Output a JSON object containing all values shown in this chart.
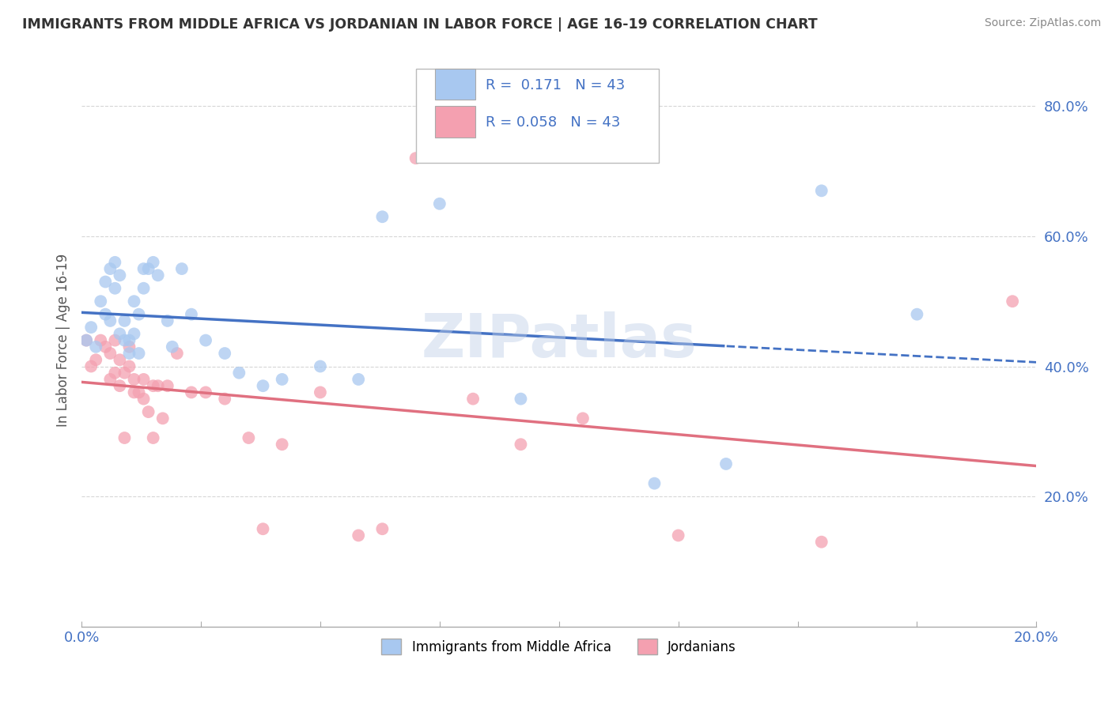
{
  "title": "IMMIGRANTS FROM MIDDLE AFRICA VS JORDANIAN IN LABOR FORCE | AGE 16-19 CORRELATION CHART",
  "source": "Source: ZipAtlas.com",
  "ylabel": "In Labor Force | Age 16-19",
  "legend_label1": "Immigrants from Middle Africa",
  "legend_label2": "Jordanians",
  "R1": 0.171,
  "N1": 43,
  "R2": 0.058,
  "N2": 43,
  "xlim": [
    0.0,
    0.2
  ],
  "ylim": [
    0.0,
    0.88
  ],
  "xticks": [
    0.0,
    0.025,
    0.05,
    0.075,
    0.1,
    0.125,
    0.15,
    0.175,
    0.2
  ],
  "xticklabels": [
    "0.0%",
    "",
    "",
    "",
    "",
    "",
    "",
    "",
    "20.0%"
  ],
  "yticks": [
    0.2,
    0.4,
    0.6,
    0.8
  ],
  "yticklabels": [
    "20.0%",
    "40.0%",
    "60.0%",
    "80.0%"
  ],
  "color_blue": "#A8C8F0",
  "color_pink": "#F4A0B0",
  "color_line_blue": "#4472C4",
  "color_line_pink": "#E07080",
  "color_text_blue": "#4472C4",
  "scatter_blue_x": [
    0.001,
    0.002,
    0.003,
    0.004,
    0.005,
    0.005,
    0.006,
    0.006,
    0.007,
    0.007,
    0.008,
    0.008,
    0.009,
    0.009,
    0.01,
    0.01,
    0.011,
    0.011,
    0.012,
    0.012,
    0.013,
    0.013,
    0.014,
    0.015,
    0.016,
    0.018,
    0.019,
    0.021,
    0.023,
    0.026,
    0.03,
    0.033,
    0.038,
    0.042,
    0.05,
    0.058,
    0.063,
    0.075,
    0.092,
    0.12,
    0.135,
    0.155,
    0.175
  ],
  "scatter_blue_y": [
    0.44,
    0.46,
    0.43,
    0.5,
    0.53,
    0.48,
    0.55,
    0.47,
    0.56,
    0.52,
    0.54,
    0.45,
    0.47,
    0.44,
    0.44,
    0.42,
    0.5,
    0.45,
    0.48,
    0.42,
    0.55,
    0.52,
    0.55,
    0.56,
    0.54,
    0.47,
    0.43,
    0.55,
    0.48,
    0.44,
    0.42,
    0.39,
    0.37,
    0.38,
    0.4,
    0.38,
    0.63,
    0.65,
    0.35,
    0.22,
    0.25,
    0.67,
    0.48
  ],
  "scatter_pink_x": [
    0.001,
    0.002,
    0.003,
    0.004,
    0.005,
    0.006,
    0.006,
    0.007,
    0.007,
    0.008,
    0.008,
    0.009,
    0.009,
    0.01,
    0.01,
    0.011,
    0.011,
    0.012,
    0.013,
    0.013,
    0.014,
    0.015,
    0.015,
    0.016,
    0.017,
    0.018,
    0.02,
    0.023,
    0.026,
    0.03,
    0.035,
    0.038,
    0.042,
    0.05,
    0.058,
    0.063,
    0.07,
    0.082,
    0.092,
    0.105,
    0.125,
    0.155,
    0.195
  ],
  "scatter_pink_y": [
    0.44,
    0.4,
    0.41,
    0.44,
    0.43,
    0.38,
    0.42,
    0.39,
    0.44,
    0.37,
    0.41,
    0.39,
    0.29,
    0.43,
    0.4,
    0.38,
    0.36,
    0.36,
    0.35,
    0.38,
    0.33,
    0.37,
    0.29,
    0.37,
    0.32,
    0.37,
    0.42,
    0.36,
    0.36,
    0.35,
    0.29,
    0.15,
    0.28,
    0.36,
    0.14,
    0.15,
    0.72,
    0.35,
    0.28,
    0.32,
    0.14,
    0.13,
    0.5
  ],
  "watermark": "ZIPatlas",
  "background_color": "#FFFFFF",
  "grid_color": "#CCCCCC",
  "blue_line_x_start": 0.0,
  "blue_line_x_solid_end": 0.135,
  "blue_line_x_end": 0.2,
  "pink_line_x_start": 0.0,
  "pink_line_x_end": 0.2
}
